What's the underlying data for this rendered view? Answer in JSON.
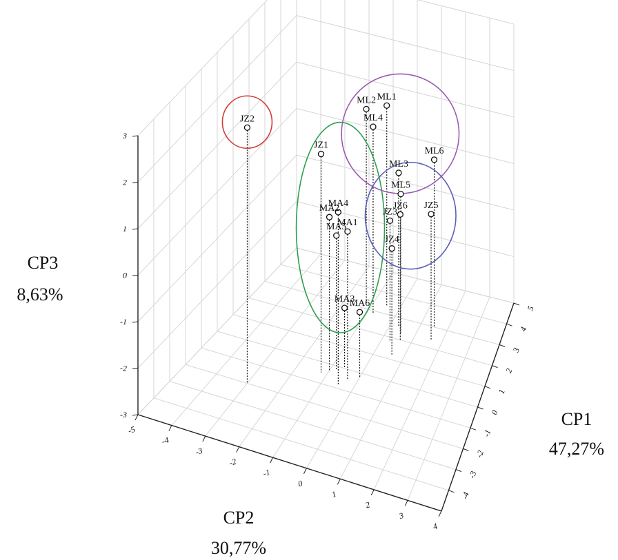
{
  "chart_data": {
    "type": "scatter",
    "title": "",
    "axes": {
      "x": {
        "name": "CP1",
        "percent": "47,27%",
        "range": [
          -5,
          5
        ],
        "ticks": [
          "-4",
          "-3",
          "-2",
          "-1",
          "0",
          "1",
          "2",
          "3",
          "4",
          "5"
        ]
      },
      "y": {
        "name": "CP2",
        "percent": "30,77%",
        "range": [
          -5,
          4
        ],
        "ticks": [
          "-5",
          "-4",
          "-3",
          "-2",
          "-1",
          "0",
          "1",
          "2",
          "3",
          "4"
        ]
      },
      "z": {
        "name": "CP3",
        "percent": "8,63%",
        "range": [
          -3,
          3
        ],
        "ticks": [
          "3",
          "2",
          "1",
          "0",
          "-1",
          "-2",
          "-3"
        ]
      }
    },
    "grid": true,
    "points": [
      {
        "label": "JZ2",
        "x": -2.0,
        "y": -3.0,
        "z": 2.5
      },
      {
        "label": "JZ1",
        "x": -0.5,
        "y": -1.2,
        "z": 1.7
      },
      {
        "label": "MA4",
        "x": -0.8,
        "y": -0.5,
        "z": 0.7
      },
      {
        "label": "MA2",
        "x": -0.3,
        "y": -1.0,
        "z": 0.3
      },
      {
        "label": "MA1",
        "x": -0.5,
        "y": -0.3,
        "z": 0.2
      },
      {
        "label": "MA5",
        "x": -0.2,
        "y": -0.8,
        "z": -0.1
      },
      {
        "label": "MA3",
        "x": 0.0,
        "y": -0.6,
        "z": -1.7
      },
      {
        "label": "MA6",
        "x": -0.2,
        "y": 0.0,
        "z": -1.6
      },
      {
        "label": "ML2",
        "x": 3.2,
        "y": -1.2,
        "z": 1.2
      },
      {
        "label": "ML1",
        "x": 3.4,
        "y": -0.5,
        "z": 1.3
      },
      {
        "label": "ML4",
        "x": 2.9,
        "y": -0.8,
        "z": 1.0
      },
      {
        "label": "ML3",
        "x": 2.6,
        "y": 0.3,
        "z": 0.3
      },
      {
        "label": "ML5",
        "x": 2.3,
        "y": 0.5,
        "z": 0.0
      },
      {
        "label": "ML6",
        "x": 3.0,
        "y": 1.5,
        "z": 0.6
      },
      {
        "label": "JZ3",
        "x": 1.8,
        "y": 0.3,
        "z": -0.4
      },
      {
        "label": "JZ6",
        "x": 2.0,
        "y": 0.6,
        "z": -0.3
      },
      {
        "label": "JZ4",
        "x": 1.2,
        "y": 0.6,
        "z": -0.7
      },
      {
        "label": "JZ5",
        "x": 2.4,
        "y": 1.6,
        "z": -0.3
      }
    ],
    "groups": [
      {
        "color": "#d13b3b",
        "members": [
          "JZ2"
        ]
      },
      {
        "color": "#2e9e4f",
        "members": [
          "JZ1",
          "MA4",
          "MA2",
          "MA1",
          "MA5",
          "MA3",
          "MA6"
        ]
      },
      {
        "color": "#9a5bb0",
        "members": [
          "ML2",
          "ML1",
          "ML4",
          "ML3",
          "ML6"
        ]
      },
      {
        "color": "#5a5fb8",
        "members": [
          "ML5",
          "JZ3",
          "JZ6",
          "JZ4",
          "JZ5"
        ]
      }
    ]
  }
}
